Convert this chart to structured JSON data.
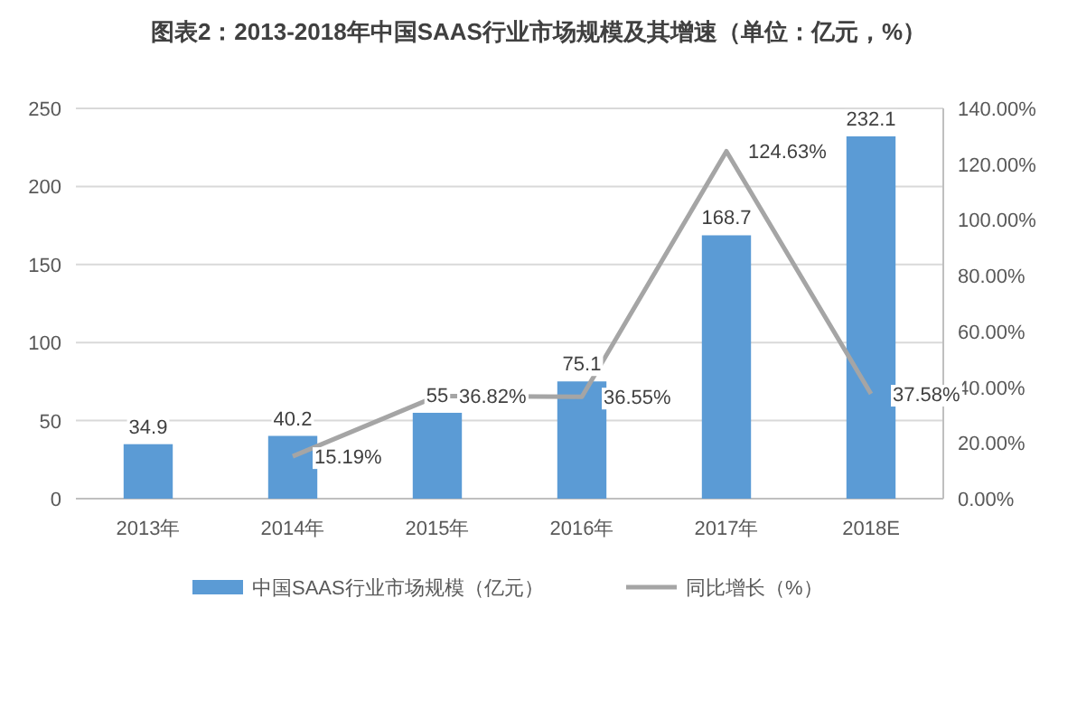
{
  "chart_data": {
    "type": "bar",
    "title": "图表2：2013-2018年中国SAAS行业市场规模及其增速（单位：亿元，%）",
    "categories": [
      "2013年",
      "2014年",
      "2015年",
      "2016年",
      "2017年",
      "2018E"
    ],
    "series": [
      {
        "name": "中国SAAS行业市场规模（亿元）",
        "color": "#5b9bd5",
        "values": [
          34.9,
          40.2,
          55,
          75.1,
          168.7,
          232.1
        ],
        "value_labels": [
          "34.9",
          "40.2",
          "55",
          "75.1",
          "168.7",
          "232.1"
        ]
      },
      {
        "name": "同比增长（%）",
        "type": "line",
        "axis": "y2",
        "color": "#a5a5a5",
        "values": [
          null,
          15.19,
          36.82,
          36.55,
          124.63,
          37.58
        ],
        "value_labels": [
          null,
          "15.19%",
          "36.82%",
          "36.55%",
          "124.63%",
          "37.58%"
        ]
      }
    ],
    "ylim": [
      0,
      250
    ],
    "yticks": [
      0,
      50,
      100,
      150,
      200,
      250
    ],
    "y2lim": [
      0,
      140
    ],
    "y2ticks": [
      {
        "value": 0,
        "label": "0.00%"
      },
      {
        "value": 20,
        "label": "20.00%"
      },
      {
        "value": 40,
        "label": "40.00%"
      },
      {
        "value": 60,
        "label": "60.00%"
      },
      {
        "value": 80,
        "label": "80.00%"
      },
      {
        "value": 100,
        "label": "100.00%"
      },
      {
        "value": 120,
        "label": "120.00%"
      },
      {
        "value": 140,
        "label": "140.00%"
      }
    ],
    "grid": "y",
    "legend": "bottom",
    "marker": "none",
    "line_style": "solid"
  }
}
